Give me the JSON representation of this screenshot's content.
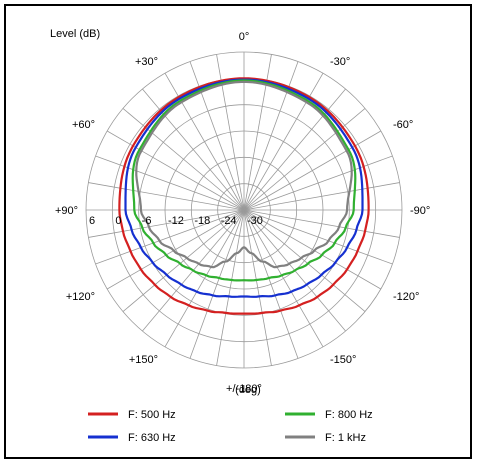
{
  "chart_data": {
    "type": "polar",
    "ylabel": "Level  (dB)",
    "xlabel": "(deg)",
    "radial_ticks": [
      "6",
      "0",
      "-6",
      "-12",
      "-18",
      "-24",
      "-30"
    ],
    "angle_labels": [
      {
        "deg": 0,
        "label": "0°"
      },
      {
        "deg": 30,
        "label": "-30°"
      },
      {
        "deg": 60,
        "label": "-60°"
      },
      {
        "deg": 90,
        "label": "-90°"
      },
      {
        "deg": 120,
        "label": "-120°"
      },
      {
        "deg": 150,
        "label": "-150°"
      },
      {
        "deg": 180,
        "label": "+/-180°"
      },
      {
        "deg": 210,
        "label": "+150°"
      },
      {
        "deg": 240,
        "label": "+120°"
      },
      {
        "deg": 270,
        "label": "+90°"
      },
      {
        "deg": 300,
        "label": "+60°"
      },
      {
        "deg": 330,
        "label": "+30°"
      }
    ],
    "rlim": [
      -30,
      6
    ],
    "grid": true,
    "angle_grid_step_deg": 10,
    "legend_position": "bottom",
    "series": [
      {
        "name": "F: 500 Hz",
        "color": "#d42020",
        "angles": [
          0,
          30,
          60,
          90,
          100,
          110,
          120,
          130,
          140,
          150,
          160,
          170,
          180,
          190,
          200,
          210,
          220,
          230,
          240,
          250,
          260,
          270,
          300,
          330
        ],
        "values": [
          0,
          -0.3,
          -0.8,
          -1.6,
          -2.0,
          -2.5,
          -2.9,
          -3.5,
          -4.1,
          -4.9,
          -5.6,
          -6.2,
          -6.4,
          -6.2,
          -5.6,
          -4.9,
          -4.1,
          -3.5,
          -2.9,
          -2.5,
          -2.0,
          -1.6,
          -0.8,
          -0.3
        ]
      },
      {
        "name": "F: 630 Hz",
        "color": "#1530d0",
        "angles": [
          0,
          30,
          60,
          90,
          100,
          110,
          120,
          130,
          140,
          150,
          160,
          170,
          180,
          190,
          200,
          210,
          220,
          230,
          240,
          250,
          260,
          270,
          300,
          330
        ],
        "values": [
          -0.3,
          -0.7,
          -1.5,
          -3.0,
          -4.0,
          -5.0,
          -6.0,
          -7.0,
          -7.8,
          -8.5,
          -9.3,
          -10.0,
          -10.3,
          -10.0,
          -9.3,
          -8.5,
          -7.8,
          -7.0,
          -6.0,
          -5.0,
          -4.0,
          -3.0,
          -1.5,
          -0.7
        ]
      },
      {
        "name": "F: 800 Hz",
        "color": "#30b030",
        "angles": [
          0,
          30,
          60,
          90,
          100,
          110,
          120,
          130,
          140,
          150,
          160,
          170,
          180,
          190,
          200,
          210,
          220,
          230,
          240,
          250,
          260,
          270,
          300,
          330
        ],
        "values": [
          -0.5,
          -1.2,
          -2.5,
          -5.0,
          -6.5,
          -8.0,
          -9.5,
          -11.0,
          -12.0,
          -12.8,
          -13.5,
          -13.8,
          -14.0,
          -13.8,
          -13.5,
          -12.8,
          -12.0,
          -11.0,
          -9.5,
          -8.0,
          -6.5,
          -5.0,
          -2.5,
          -1.2
        ]
      },
      {
        "name": "F: 1 kHz",
        "color": "#808080",
        "angles": [
          0,
          30,
          60,
          90,
          100,
          110,
          120,
          130,
          140,
          150,
          160,
          170,
          180,
          190,
          200,
          210,
          220,
          230,
          240,
          250,
          260,
          270,
          300,
          330
        ],
        "values": [
          -0.8,
          -1.6,
          -3.0,
          -6.5,
          -8.0,
          -9.5,
          -11.5,
          -13.0,
          -14.0,
          -15.0,
          -17.5,
          -20.0,
          -21.5,
          -20.0,
          -17.5,
          -15.0,
          -14.0,
          -13.0,
          -11.5,
          -9.5,
          -8.0,
          -6.5,
          -3.0,
          -1.6
        ]
      }
    ]
  }
}
